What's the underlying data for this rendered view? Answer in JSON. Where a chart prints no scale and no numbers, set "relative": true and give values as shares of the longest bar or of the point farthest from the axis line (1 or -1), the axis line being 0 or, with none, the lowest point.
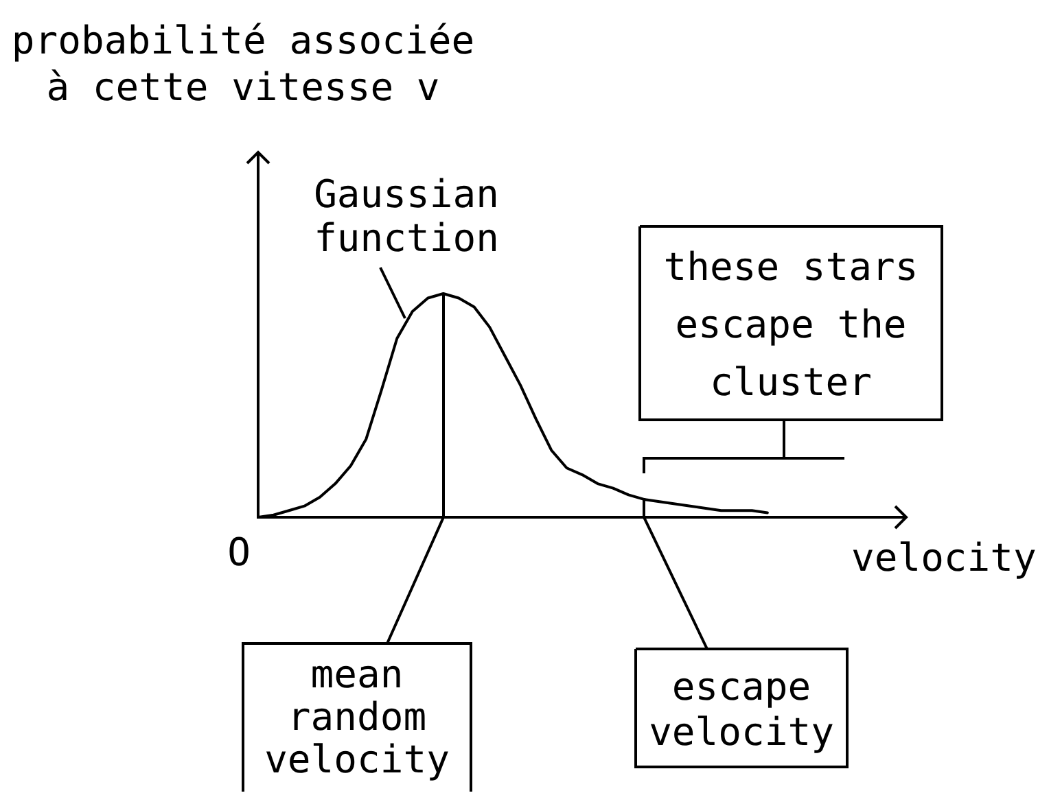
{
  "chart_data": {
    "type": "line",
    "relative": true,
    "xlabel": "velocity",
    "ylabel": "probabilité associée à cette vitesse v",
    "categories": [
      null,
      null,
      null,
      null,
      null,
      null,
      null,
      null,
      null,
      null,
      null,
      null,
      null,
      null,
      null,
      null,
      null,
      null,
      null,
      null,
      null,
      null,
      null,
      null,
      null,
      null,
      null,
      null,
      null,
      null,
      null,
      null,
      null,
      null
    ],
    "series": [
      {
        "name": "Gaussian function",
        "color": "#000000",
        "values": [
          0,
          0.01,
          0.03,
          0.05,
          0.09,
          0.15,
          0.23,
          0.35,
          0.57,
          0.8,
          0.92,
          0.98,
          1,
          0.98,
          0.94,
          0.85,
          0.72,
          0.59,
          0.44,
          0.3,
          0.22,
          0.19,
          0.15,
          0.13,
          0.1,
          0.08,
          0.07,
          0.06,
          0.05,
          0.04,
          0.03,
          0.03,
          0.03,
          0.02
        ]
      }
    ],
    "annotations": [
      "O",
      "mean random velocity",
      "escape velocity",
      "these stars escape the cluster"
    ]
  }
}
